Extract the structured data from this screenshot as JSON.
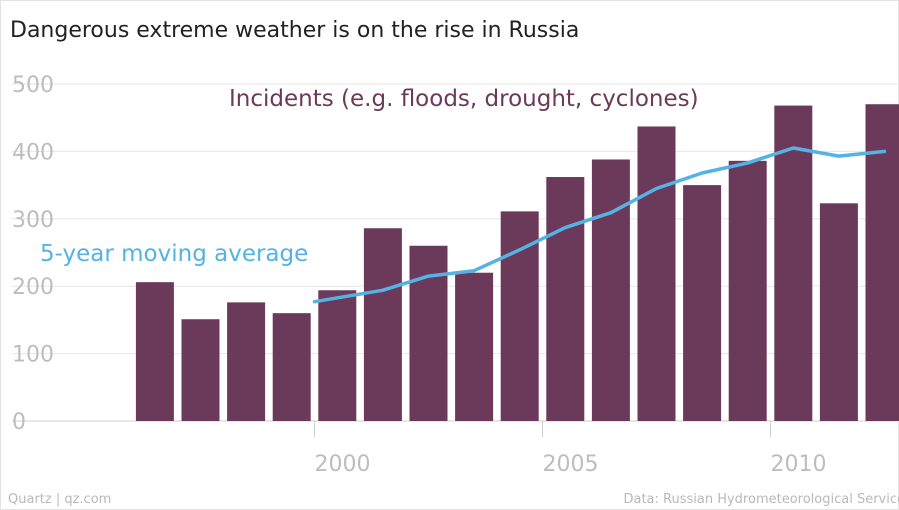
{
  "header": {
    "title": "Dangerous extreme weather is on the rise in Russia"
  },
  "footer": {
    "credit": "Quartz | qz.com",
    "source": "Data: Russian Hydrometeorological Service"
  },
  "colors": {
    "bar": "#6b3a5a",
    "line": "#55b3e4",
    "grid": "#e6e6e6",
    "tick": "#bdbdbd"
  },
  "chart_data": {
    "type": "bar",
    "x": [
      1996,
      1997,
      1998,
      1999,
      2000,
      2001,
      2002,
      2003,
      2004,
      2005,
      2006,
      2007,
      2008,
      2009,
      2010,
      2011,
      2012
    ],
    "series": [
      {
        "name": "Incidents (e.g. floods, drought, cyclones)",
        "type": "bar",
        "values": [
          206,
          151,
          176,
          160,
          194,
          286,
          260,
          220,
          311,
          362,
          388,
          437,
          350,
          386,
          468,
          323,
          470
        ]
      },
      {
        "name": "5-year moving average",
        "type": "line",
        "x": [
          2000,
          2001,
          2002,
          2003,
          2004,
          2005,
          2006,
          2007,
          2008,
          2009,
          2010,
          2011,
          2012
        ],
        "values": [
          177,
          194,
          215,
          223,
          254,
          287,
          309,
          345,
          368,
          383,
          405,
          393,
          400
        ]
      }
    ],
    "ylim": [
      0,
      500
    ],
    "yticks": [
      0,
      100,
      200,
      300,
      400,
      500
    ],
    "xticks": [
      2000,
      2005,
      2010
    ],
    "grid": true
  }
}
